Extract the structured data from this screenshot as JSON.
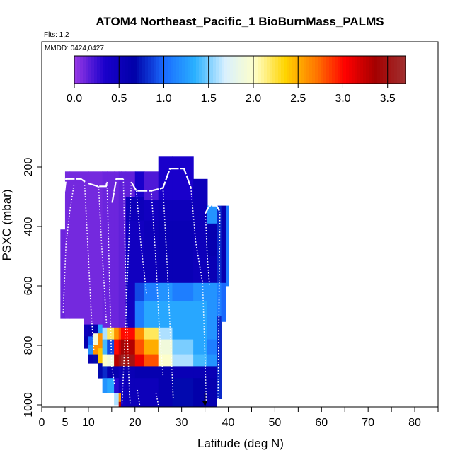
{
  "chart_data": {
    "type": "heatmap",
    "title": "ATOM4 Northeast_Pacific_1 BioBurnMass_PALMS",
    "flights_label": "Flts: 1,2",
    "mmdd_label": "MMDD: 0424,0427",
    "xlabel": "Latitude (deg N)",
    "ylabel": "PSXC (mbar)",
    "xlim": [
      0,
      85
    ],
    "ylim": [
      1010,
      50
    ],
    "x_ticks": [
      0,
      5,
      10,
      15,
      20,
      25,
      30,
      35,
      40,
      45,
      50,
      55,
      60,
      65,
      70,
      75,
      80,
      85
    ],
    "x_tick_labels": [
      "0",
      "5",
      "10",
      "",
      "20",
      "",
      "30",
      "",
      "40",
      "",
      "50",
      "",
      "60",
      "",
      "70",
      "",
      "80",
      ""
    ],
    "y_ticks": [
      200,
      400,
      600,
      800,
      1000
    ],
    "y_tick_labels": [
      "200",
      "400",
      "600",
      "800",
      "1000"
    ],
    "colorbar": {
      "min": 0,
      "max": 3.7,
      "ticks": [
        0.0,
        0.5,
        1.0,
        1.5,
        2.0,
        2.5,
        3.0,
        3.5
      ],
      "tick_labels": [
        "0.0",
        "0.5",
        "1.0",
        "1.5",
        "2.0",
        "2.5",
        "3.0",
        "3.5"
      ],
      "colors": [
        "#9a3ae6",
        "#1a00cc",
        "#0000a8",
        "#1a6cff",
        "#2ab0ff",
        "#d8f0ff",
        "#ffffc8",
        "#ffd400",
        "#ff7a00",
        "#ff0000",
        "#a40000",
        "#a03030"
      ]
    },
    "columns": [
      {
        "x0": 4.0,
        "x1": 5.0,
        "p_top": 410,
        "p_bot": 710,
        "segments": [
          [
            410,
            710,
            0.12
          ]
        ]
      },
      {
        "x0": 5.0,
        "x1": 6.0,
        "p_top": 215,
        "p_bot": 710,
        "segments": [
          [
            215,
            710,
            0.1
          ]
        ]
      },
      {
        "x0": 6.0,
        "x1": 9.0,
        "p_top": 215,
        "p_bot": 710,
        "segments": [
          [
            215,
            710,
            0.1
          ]
        ]
      },
      {
        "x0": 9.0,
        "x1": 10.0,
        "p_top": 215,
        "p_bot": 810,
        "segments": [
          [
            215,
            730,
            0.1
          ],
          [
            730,
            770,
            0.5
          ],
          [
            770,
            810,
            0.6
          ]
        ]
      },
      {
        "x0": 10.0,
        "x1": 11.0,
        "p_top": 215,
        "p_bot": 860,
        "segments": [
          [
            215,
            730,
            0.1
          ],
          [
            730,
            770,
            0.55
          ],
          [
            770,
            800,
            1.0
          ],
          [
            800,
            830,
            1.2
          ],
          [
            830,
            860,
            0.6
          ]
        ]
      },
      {
        "x0": 11.0,
        "x1": 12.0,
        "p_top": 215,
        "p_bot": 860,
        "segments": [
          [
            215,
            730,
            0.1
          ],
          [
            730,
            760,
            0.6
          ],
          [
            760,
            800,
            1.9
          ],
          [
            800,
            830,
            2.6
          ],
          [
            830,
            860,
            0.7
          ]
        ]
      },
      {
        "x0": 12.0,
        "x1": 13.0,
        "p_top": 215,
        "p_bot": 910,
        "segments": [
          [
            215,
            730,
            0.1
          ],
          [
            730,
            760,
            1.3
          ],
          [
            760,
            810,
            2.6
          ],
          [
            810,
            860,
            2.4
          ],
          [
            860,
            910,
            0.7
          ]
        ]
      },
      {
        "x0": 13.0,
        "x1": 14.0,
        "p_top": 215,
        "p_bot": 960,
        "segments": [
          [
            215,
            740,
            0.12
          ],
          [
            740,
            780,
            1.6
          ],
          [
            780,
            830,
            1.4
          ],
          [
            830,
            870,
            2.0
          ],
          [
            870,
            910,
            0.8
          ],
          [
            910,
            960,
            1.2
          ]
        ]
      },
      {
        "x0": 14.0,
        "x1": 15.5,
        "p_top": 215,
        "p_bot": 960,
        "segments": [
          [
            215,
            740,
            0.12
          ],
          [
            740,
            780,
            2.2
          ],
          [
            780,
            830,
            0.9
          ],
          [
            830,
            870,
            1.9
          ],
          [
            870,
            910,
            0.6
          ],
          [
            910,
            960,
            1.3
          ]
        ]
      },
      {
        "x0": 15.5,
        "x1": 16.5,
        "p_top": 215,
        "p_bot": 1000,
        "segments": [
          [
            215,
            740,
            0.12
          ],
          [
            740,
            780,
            2.6
          ],
          [
            780,
            830,
            3.0
          ],
          [
            830,
            870,
            3.3
          ],
          [
            870,
            910,
            0.6
          ],
          [
            910,
            960,
            0.3
          ],
          [
            960,
            1000,
            1.6
          ]
        ]
      },
      {
        "x0": 16.5,
        "x1": 17.0,
        "p_top": 215,
        "p_bot": 1010,
        "segments": [
          [
            215,
            740,
            0.15
          ],
          [
            740,
            780,
            2.8
          ],
          [
            780,
            830,
            3.2
          ],
          [
            830,
            870,
            3.5
          ],
          [
            870,
            910,
            0.5
          ],
          [
            910,
            960,
            0.45
          ],
          [
            960,
            990,
            2.6
          ],
          [
            990,
            1010,
            3.3
          ]
        ]
      },
      {
        "x0": 17.0,
        "x1": 18.0,
        "p_top": 215,
        "p_bot": 1010,
        "segments": [
          [
            215,
            740,
            0.15
          ],
          [
            740,
            780,
            3.0
          ],
          [
            780,
            830,
            3.4
          ],
          [
            830,
            870,
            3.6
          ],
          [
            870,
            910,
            0.55
          ],
          [
            910,
            1010,
            0.45
          ]
        ]
      },
      {
        "x0": 18.0,
        "x1": 20.0,
        "p_top": 215,
        "p_bot": 1010,
        "segments": [
          [
            215,
            300,
            0.15
          ],
          [
            300,
            380,
            0.5
          ],
          [
            380,
            740,
            0.45
          ],
          [
            740,
            780,
            3.0
          ],
          [
            780,
            830,
            3.3
          ],
          [
            830,
            870,
            3.5
          ],
          [
            870,
            910,
            0.55
          ],
          [
            910,
            1010,
            0.5
          ]
        ]
      },
      {
        "x0": 20.0,
        "x1": 22.0,
        "p_top": 215,
        "p_bot": 1010,
        "segments": [
          [
            215,
            300,
            0.35
          ],
          [
            300,
            380,
            0.5
          ],
          [
            380,
            590,
            0.45
          ],
          [
            590,
            650,
            0.9
          ],
          [
            650,
            740,
            1.1
          ],
          [
            740,
            780,
            2.6
          ],
          [
            780,
            830,
            2.8
          ],
          [
            830,
            870,
            3.1
          ],
          [
            870,
            910,
            0.6
          ],
          [
            910,
            1010,
            0.5
          ]
        ]
      },
      {
        "x0": 22.0,
        "x1": 25.0,
        "p_top": 215,
        "p_bot": 1010,
        "segments": [
          [
            215,
            310,
            0.2
          ],
          [
            310,
            380,
            0.45
          ],
          [
            380,
            590,
            0.5
          ],
          [
            590,
            650,
            1.1
          ],
          [
            650,
            740,
            1.3
          ],
          [
            740,
            780,
            2.2
          ],
          [
            780,
            830,
            2.5
          ],
          [
            830,
            870,
            2.8
          ],
          [
            870,
            910,
            0.6
          ],
          [
            910,
            1010,
            0.5
          ]
        ]
      },
      {
        "x0": 25.0,
        "x1": 28.0,
        "p_top": 165,
        "p_bot": 1010,
        "segments": [
          [
            165,
            310,
            0.35
          ],
          [
            310,
            380,
            0.5
          ],
          [
            380,
            590,
            0.55
          ],
          [
            590,
            650,
            1.2
          ],
          [
            650,
            740,
            1.3
          ],
          [
            740,
            780,
            1.6
          ],
          [
            780,
            830,
            1.9
          ],
          [
            830,
            870,
            2.0
          ],
          [
            870,
            910,
            0.6
          ],
          [
            910,
            1010,
            0.6
          ]
        ]
      },
      {
        "x0": 28.0,
        "x1": 32.5,
        "p_top": 165,
        "p_bot": 1010,
        "segments": [
          [
            165,
            310,
            0.35
          ],
          [
            310,
            380,
            0.5
          ],
          [
            380,
            590,
            0.55
          ],
          [
            590,
            650,
            1.1
          ],
          [
            650,
            740,
            1.3
          ],
          [
            740,
            780,
            1.3
          ],
          [
            780,
            830,
            1.5
          ],
          [
            830,
            870,
            1.6
          ],
          [
            870,
            910,
            0.55
          ],
          [
            910,
            1010,
            0.7
          ]
        ]
      },
      {
        "x0": 32.5,
        "x1": 35.5,
        "p_top": 240,
        "p_bot": 1010,
        "segments": [
          [
            240,
            330,
            0.5
          ],
          [
            330,
            590,
            0.5
          ],
          [
            590,
            650,
            1.2
          ],
          [
            650,
            740,
            1.3
          ],
          [
            740,
            780,
            1.3
          ],
          [
            780,
            830,
            1.3
          ],
          [
            830,
            870,
            1.4
          ],
          [
            870,
            910,
            0.55
          ],
          [
            910,
            1010,
            0.65
          ]
        ]
      },
      {
        "x0": 35.5,
        "x1": 37.5,
        "p_top": 330,
        "p_bot": 1010,
        "segments": [
          [
            330,
            390,
            1.2
          ],
          [
            390,
            500,
            0.6
          ],
          [
            500,
            590,
            0.55
          ],
          [
            590,
            650,
            1.2
          ],
          [
            650,
            740,
            1.2
          ],
          [
            740,
            780,
            1.2
          ],
          [
            780,
            830,
            1.1
          ],
          [
            830,
            870,
            1.2
          ],
          [
            870,
            910,
            0.55
          ],
          [
            910,
            1010,
            0.6
          ]
        ]
      },
      {
        "x0": 37.5,
        "x1": 38.5,
        "p_top": 330,
        "p_bot": 980,
        "segments": [
          [
            330,
            590,
            0.8
          ],
          [
            590,
            700,
            1.1
          ],
          [
            700,
            980,
            0.8
          ]
        ]
      },
      {
        "x0": 38.5,
        "x1": 39.5,
        "p_top": 330,
        "p_bot": 720,
        "segments": [
          [
            330,
            590,
            0.6
          ],
          [
            590,
            720,
            1.0
          ]
        ]
      },
      {
        "x0": 39.5,
        "x1": 40.0,
        "p_top": 330,
        "p_bot": 600,
        "segments": [
          [
            330,
            600,
            1.1
          ]
        ]
      }
    ],
    "white_tracks": [
      [
        [
          4.6,
          320
        ],
        [
          5.2,
          240
        ],
        [
          8.4,
          240
        ],
        [
          9.3,
          250
        ]
      ],
      [
        [
          10.0,
          255
        ],
        [
          12.0,
          265
        ],
        [
          13.8,
          265
        ],
        [
          14.0,
          250
        ]
      ],
      [
        [
          15.1,
          320
        ],
        [
          16.0,
          240
        ],
        [
          17.5,
          240
        ]
      ],
      [
        [
          19.2,
          250
        ],
        [
          20.3,
          280
        ],
        [
          23.5,
          280
        ],
        [
          26.0,
          270
        ],
        [
          27.5,
          205
        ],
        [
          30.5,
          205
        ],
        [
          32.0,
          270
        ]
      ],
      [
        [
          35.1,
          355
        ],
        [
          36.0,
          330
        ],
        [
          37.5,
          330
        ],
        [
          38.2,
          350
        ]
      ]
    ],
    "dotted_profiles": [
      [
        [
          4.6,
          690
        ],
        [
          5.2,
          460
        ],
        [
          6.0,
          350
        ],
        [
          6.9,
          260
        ]
      ],
      [
        [
          9.2,
          260
        ],
        [
          10.0,
          500
        ],
        [
          10.6,
          690
        ],
        [
          11.2,
          820
        ]
      ],
      [
        [
          12.2,
          265
        ],
        [
          12.8,
          450
        ],
        [
          13.4,
          600
        ],
        [
          13.9,
          730
        ]
      ],
      [
        [
          14.0,
          250
        ],
        [
          14.4,
          500
        ],
        [
          15.0,
          870
        ],
        [
          15.6,
          930
        ]
      ],
      [
        [
          17.5,
          240
        ],
        [
          17.9,
          500
        ],
        [
          18.3,
          740
        ],
        [
          18.8,
          960
        ],
        [
          19.0,
          1000
        ]
      ],
      [
        [
          19.2,
          250
        ],
        [
          18.5,
          520
        ],
        [
          17.8,
          800
        ],
        [
          17.2,
          1000
        ]
      ],
      [
        [
          20.3,
          280
        ],
        [
          21.2,
          450
        ],
        [
          22.5,
          630
        ]
      ],
      [
        [
          23.5,
          280
        ],
        [
          24.5,
          520
        ],
        [
          25.2,
          740
        ],
        [
          26.0,
          900
        ]
      ],
      [
        [
          26.0,
          270
        ],
        [
          27.0,
          560
        ],
        [
          28.2,
          980
        ]
      ],
      [
        [
          32.0,
          270
        ],
        [
          33.0,
          450
        ],
        [
          34.5,
          590
        ],
        [
          35.0,
          830
        ],
        [
          35.3,
          1000
        ]
      ],
      [
        [
          35.1,
          355
        ],
        [
          35.5,
          500
        ],
        [
          36.0,
          600
        ]
      ],
      [
        [
          38.2,
          350
        ],
        [
          38.0,
          700
        ],
        [
          37.8,
          1000
        ]
      ],
      [
        [
          24.5,
          960
        ],
        [
          25.0,
          1000
        ]
      ],
      [
        [
          21.0,
          1000
        ],
        [
          20.5,
          950
        ]
      ]
    ],
    "marker": {
      "x": 35.0,
      "p": 1000
    }
  }
}
